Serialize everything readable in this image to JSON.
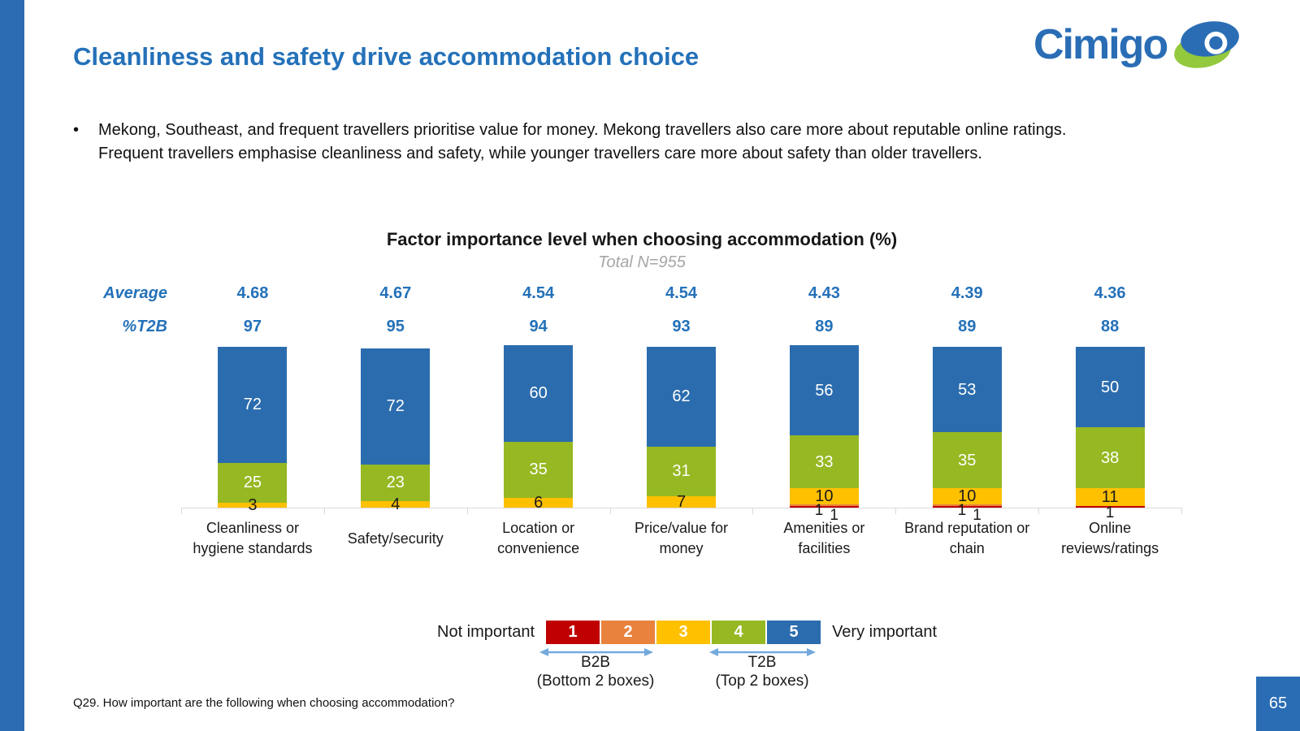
{
  "slide": {
    "title": "Cleanliness and safety drive accommodation choice",
    "bullet_glyph": "•",
    "bullet_lines": [
      "Mekong, Southeast, and frequent travellers prioritise value for money. Mekong travellers also care more about reputable online ratings.",
      "Frequent travellers emphasise cleanliness and safety, while younger travellers care more about safety than older travellers."
    ],
    "footnote": "Q29. How important are the following when choosing accommodation?",
    "page_number": "65",
    "logo": {
      "text": "Cimigo"
    }
  },
  "colors": {
    "accent_blue": "#2471b9",
    "strip_blue": "#2b6cb3",
    "subtitle_gray": "#a6a6a6",
    "axis_gray": "#d9d9d9",
    "arrow_blue": "#74a9dc",
    "logo_blue": "#2a6db5",
    "logo_green": "#94c83d"
  },
  "chart_data": {
    "type": "bar",
    "stacked": true,
    "orientation": "vertical",
    "title": "Factor importance level when choosing accommodation (%)",
    "subtitle": "Total N=955",
    "row_labels": {
      "average": "Average",
      "t2b": "%T2B"
    },
    "averages": [
      "4.68",
      "4.67",
      "4.54",
      "4.54",
      "4.43",
      "4.39",
      "4.36"
    ],
    "t2b_percent": [
      97,
      95,
      94,
      93,
      89,
      89,
      88
    ],
    "categories": [
      "Cleanliness or\nhygiene standards",
      "Safety/security",
      "Location or\nconvenience",
      "Price/value for\nmoney",
      "Amenities or\nfacilities",
      "Brand reputation or\nchain",
      "Online\nreviews/ratings"
    ],
    "series": [
      {
        "name": "1",
        "color": "#c00000",
        "values": [
          0,
          0,
          0,
          0,
          1,
          1,
          1
        ]
      },
      {
        "name": "2",
        "color": "#e8823c",
        "values": [
          0,
          0,
          0,
          0,
          1,
          1,
          0
        ]
      },
      {
        "name": "3",
        "color": "#ffc000",
        "values": [
          3,
          4,
          6,
          7,
          10,
          10,
          11
        ]
      },
      {
        "name": "4",
        "color": "#96b822",
        "values": [
          25,
          23,
          35,
          31,
          33,
          35,
          38
        ]
      },
      {
        "name": "5",
        "color": "#2b6cae",
        "values": [
          72,
          72,
          60,
          62,
          56,
          53,
          50
        ]
      }
    ],
    "ylim": [
      0,
      100
    ],
    "grid": false,
    "legend": {
      "position": "bottom",
      "left_label": "Not important",
      "right_label": "Very important",
      "scale_boxes": [
        "1",
        "2",
        "3",
        "4",
        "5"
      ],
      "b2b": {
        "label": "B2B",
        "sub": "(Bottom 2 boxes)"
      },
      "t2b": {
        "label": "T2B",
        "sub": "(Top 2 boxes)"
      }
    }
  }
}
